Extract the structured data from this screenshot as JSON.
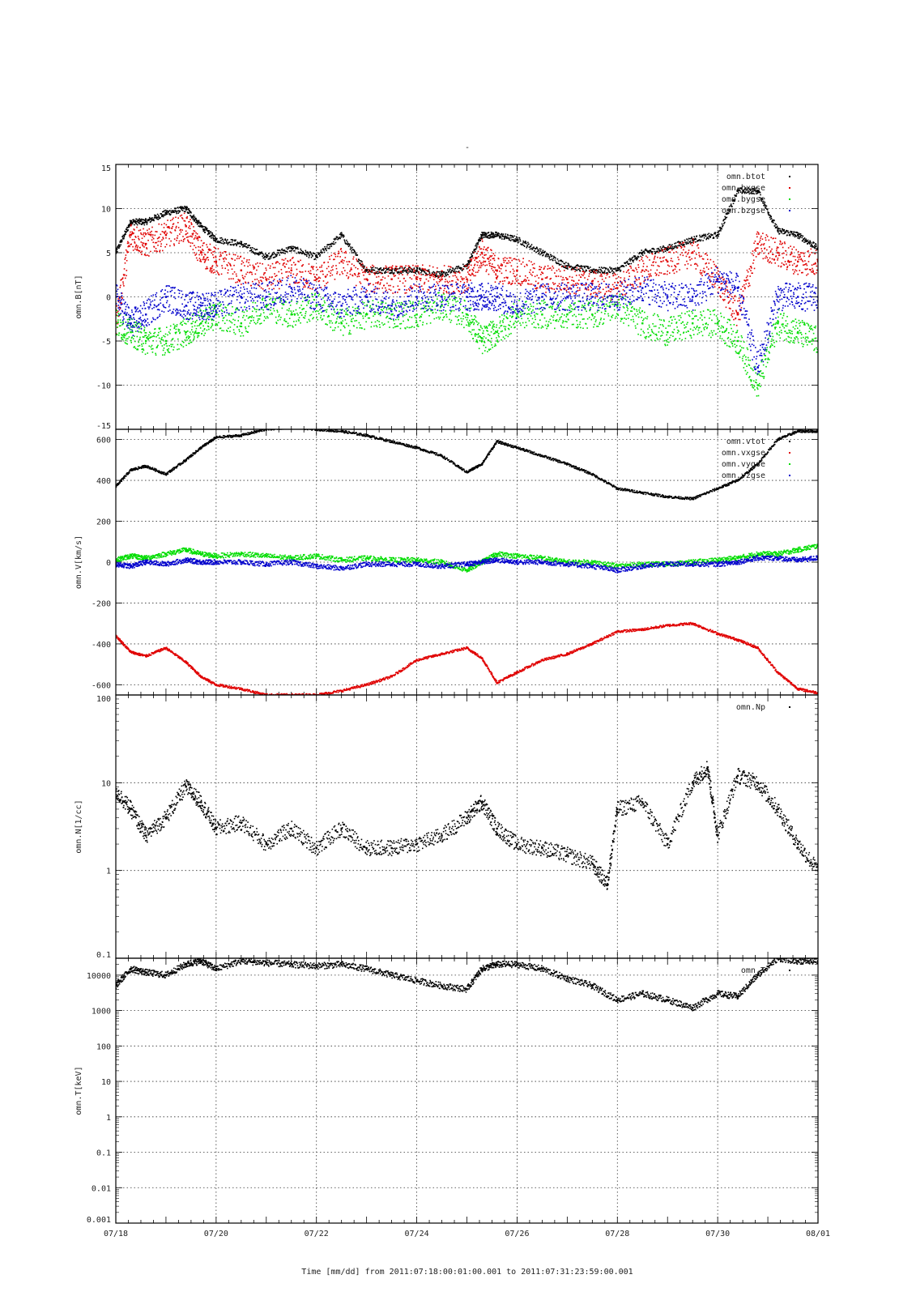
{
  "figure": {
    "title": "-",
    "xlabel": "Time [mm/dd]  from 2011:07:18:00:01:00.001  to  2011:07:31:23:59:00.001",
    "x_ticks": [
      "07/18",
      "07/20",
      "07/22",
      "07/24",
      "07/26",
      "07/28",
      "07/30",
      "08/01"
    ]
  },
  "colors": {
    "black": "#000000",
    "red": "#e00000",
    "green": "#00dd00",
    "blue": "#0000cc"
  },
  "chart_data": [
    {
      "type": "scatter",
      "ylabel": "omn.B[nT]",
      "ylim": [
        -15,
        15
      ],
      "yscale": "linear",
      "y_ticks": [
        -15,
        -10,
        -5,
        0,
        5,
        10,
        15
      ],
      "legend_placement": "top-right",
      "x_range_days": [
        18,
        32
      ],
      "series": [
        {
          "name": "omn.btot",
          "color": "#000000",
          "x": [
            18.0,
            18.3,
            18.6,
            19.0,
            19.4,
            19.7,
            20.0,
            20.5,
            21.0,
            21.5,
            22.0,
            22.5,
            23.0,
            23.5,
            24.0,
            24.5,
            25.0,
            25.3,
            25.6,
            26.0,
            26.5,
            27.0,
            27.5,
            28.0,
            28.5,
            29.0,
            29.5,
            30.0,
            30.4,
            30.8,
            31.2,
            31.6,
            32.0
          ],
          "y": [
            5,
            8.5,
            8.5,
            9.5,
            10,
            8,
            6.5,
            6,
            4.5,
            5.5,
            4.5,
            7,
            3,
            3,
            3,
            2.5,
            3.5,
            7,
            7,
            6.5,
            5,
            3.5,
            3,
            3,
            5,
            5.5,
            6.5,
            7,
            12,
            12,
            7.5,
            7,
            5.5
          ]
        },
        {
          "name": "omn.bxgse",
          "color": "#e00000",
          "x": [
            18.0,
            18.3,
            18.6,
            19.0,
            19.4,
            19.7,
            20.0,
            20.5,
            21.0,
            21.5,
            22.0,
            22.5,
            23.0,
            23.5,
            24.0,
            24.5,
            25.0,
            25.3,
            25.6,
            26.0,
            26.5,
            27.0,
            27.5,
            28.0,
            28.5,
            29.0,
            29.5,
            30.0,
            30.4,
            30.8,
            31.2,
            31.6,
            32.0
          ],
          "y": [
            -3,
            7,
            6,
            7,
            8,
            5,
            4,
            3,
            2,
            3,
            2,
            4,
            2,
            2,
            2,
            2,
            2,
            5,
            3,
            3,
            2,
            2,
            1.5,
            1,
            3,
            4,
            5,
            2,
            -2,
            6,
            5,
            4,
            4
          ]
        },
        {
          "name": "omn.bygse",
          "color": "#00dd00",
          "x": [
            18.0,
            18.3,
            18.6,
            19.0,
            19.4,
            19.7,
            20.0,
            20.5,
            21.0,
            21.5,
            22.0,
            22.5,
            23.0,
            23.5,
            24.0,
            24.5,
            25.0,
            25.3,
            25.6,
            26.0,
            26.5,
            27.0,
            27.5,
            28.0,
            28.5,
            29.0,
            29.5,
            30.0,
            30.4,
            30.8,
            31.2,
            31.6,
            32.0
          ],
          "y": [
            -3,
            -4,
            -5,
            -5,
            -4,
            -3,
            -2,
            -3,
            -1,
            -2,
            -1,
            -3,
            -2,
            -2,
            -2,
            -1,
            -2,
            -5,
            -4,
            -2,
            -2,
            -2,
            -2,
            -1,
            -3,
            -4,
            -3,
            -3,
            -5,
            -10,
            -3,
            -4,
            -5
          ]
        },
        {
          "name": "omn.bzgse",
          "color": "#0000cc",
          "x": [
            18.0,
            18.3,
            18.6,
            19.0,
            19.4,
            19.7,
            20.0,
            20.5,
            21.0,
            21.5,
            22.0,
            22.5,
            23.0,
            23.5,
            24.0,
            24.5,
            25.0,
            25.3,
            25.6,
            26.0,
            26.5,
            27.0,
            27.5,
            28.0,
            28.5,
            29.0,
            29.5,
            30.0,
            30.4,
            30.8,
            31.2,
            31.6,
            32.0
          ],
          "y": [
            0,
            -3,
            -2,
            0,
            -1,
            -1,
            -1,
            0,
            0,
            1,
            0,
            -1,
            0,
            -1,
            0,
            0,
            0,
            0,
            0,
            -1,
            0,
            0,
            0,
            0,
            1,
            0,
            0,
            2,
            1,
            -8,
            0,
            0,
            0
          ]
        }
      ]
    },
    {
      "type": "scatter",
      "ylabel": "omn.V[km/s]",
      "ylim": [
        -650,
        650
      ],
      "yscale": "linear",
      "y_ticks": [
        -600,
        -400,
        -200,
        0,
        200,
        400,
        600
      ],
      "legend_placement": "top-right",
      "x_range_days": [
        18,
        32
      ],
      "series": [
        {
          "name": "omn.vtot",
          "color": "#000000",
          "x": [
            18.0,
            18.3,
            18.6,
            19.0,
            19.4,
            19.7,
            20.0,
            20.5,
            21.0,
            21.5,
            22.0,
            22.5,
            23.0,
            23.5,
            24.0,
            24.5,
            25.0,
            25.3,
            25.6,
            26.0,
            26.5,
            27.0,
            27.5,
            28.0,
            28.5,
            29.0,
            29.5,
            30.0,
            30.4,
            30.8,
            31.2,
            31.6,
            32.0
          ],
          "y": [
            370,
            450,
            470,
            430,
            500,
            560,
            610,
            620,
            650,
            660,
            650,
            640,
            620,
            590,
            560,
            520,
            440,
            480,
            590,
            560,
            520,
            480,
            430,
            360,
            340,
            320,
            310,
            360,
            400,
            480,
            600,
            640,
            640
          ]
        },
        {
          "name": "omn.vxgse",
          "color": "#e00000",
          "x": [
            18.0,
            18.3,
            18.6,
            19.0,
            19.4,
            19.7,
            20.0,
            20.5,
            21.0,
            21.5,
            22.0,
            22.5,
            23.0,
            23.5,
            24.0,
            24.5,
            25.0,
            25.3,
            25.6,
            26.0,
            26.5,
            27.0,
            27.5,
            28.0,
            28.5,
            29.0,
            29.5,
            30.0,
            30.4,
            30.8,
            31.2,
            31.6,
            32.0
          ],
          "y": [
            -360,
            -440,
            -460,
            -420,
            -490,
            -560,
            -600,
            -620,
            -650,
            -650,
            -650,
            -630,
            -600,
            -560,
            -480,
            -450,
            -420,
            -470,
            -590,
            -540,
            -480,
            -450,
            -400,
            -340,
            -330,
            -310,
            -300,
            -350,
            -380,
            -420,
            -540,
            -620,
            -640
          ]
        },
        {
          "name": "omn.vygse",
          "color": "#00dd00",
          "x": [
            18.0,
            18.3,
            18.6,
            19.0,
            19.4,
            19.7,
            20.0,
            20.5,
            21.0,
            21.5,
            22.0,
            22.5,
            23.0,
            23.5,
            24.0,
            24.5,
            25.0,
            25.3,
            25.6,
            26.0,
            26.5,
            27.0,
            27.5,
            28.0,
            28.5,
            29.0,
            29.5,
            30.0,
            30.4,
            30.8,
            31.2,
            31.6,
            32.0
          ],
          "y": [
            10,
            30,
            20,
            40,
            60,
            40,
            30,
            40,
            30,
            20,
            30,
            10,
            20,
            10,
            10,
            0,
            -40,
            0,
            40,
            30,
            20,
            0,
            0,
            -20,
            -10,
            -10,
            0,
            10,
            20,
            40,
            40,
            60,
            80
          ]
        },
        {
          "name": "omn.vzgse",
          "color": "#0000cc",
          "x": [
            18.0,
            18.3,
            18.6,
            19.0,
            19.4,
            19.7,
            20.0,
            20.5,
            21.0,
            21.5,
            22.0,
            22.5,
            23.0,
            23.5,
            24.0,
            24.5,
            25.0,
            25.3,
            25.6,
            26.0,
            26.5,
            27.0,
            27.5,
            28.0,
            28.5,
            29.0,
            29.5,
            30.0,
            30.4,
            30.8,
            31.2,
            31.6,
            32.0
          ],
          "y": [
            -10,
            -20,
            0,
            -10,
            10,
            0,
            0,
            0,
            -10,
            0,
            -20,
            -30,
            -10,
            -10,
            -10,
            -20,
            -10,
            0,
            10,
            0,
            0,
            -10,
            -20,
            -40,
            -20,
            -10,
            -10,
            -10,
            0,
            20,
            20,
            10,
            20
          ]
        }
      ]
    },
    {
      "type": "scatter",
      "ylabel": "omn.N[1/cc]",
      "ylim": [
        0.1,
        100
      ],
      "yscale": "log",
      "y_ticks": [
        0.1,
        1,
        10,
        100
      ],
      "legend_placement": "top-right",
      "x_range_days": [
        18,
        32
      ],
      "series": [
        {
          "name": "omn.Np",
          "color": "#000000",
          "x": [
            18.0,
            18.3,
            18.6,
            19.0,
            19.4,
            19.7,
            20.0,
            20.5,
            21.0,
            21.5,
            22.0,
            22.5,
            23.0,
            23.5,
            24.0,
            24.5,
            25.0,
            25.3,
            25.6,
            26.0,
            26.5,
            27.0,
            27.5,
            27.8,
            28.0,
            28.5,
            29.0,
            29.5,
            29.8,
            30.0,
            30.4,
            30.8,
            31.2,
            31.6,
            32.0
          ],
          "y": [
            8,
            5,
            2.5,
            4,
            9,
            6,
            3,
            3.5,
            2,
            3,
            1.8,
            3,
            1.8,
            1.8,
            2,
            2.5,
            4,
            6,
            3,
            2,
            1.8,
            1.5,
            1.2,
            0.7,
            5,
            6,
            2,
            10,
            15,
            2.5,
            12,
            10,
            5,
            2,
            1
          ]
        }
      ]
    },
    {
      "type": "scatter",
      "ylabel": "omn.T[keV]",
      "ylim": [
        0.001,
        30000
      ],
      "yscale": "log",
      "y_ticks": [
        0.001,
        0.01,
        0.1,
        1,
        10,
        100,
        1000,
        10000
      ],
      "legend_placement": "top-right",
      "x_range_days": [
        18,
        32
      ],
      "series": [
        {
          "name": "omn.T",
          "color": "#000000",
          "x": [
            18.0,
            18.3,
            18.6,
            19.0,
            19.4,
            19.7,
            20.0,
            20.5,
            21.0,
            21.5,
            22.0,
            22.5,
            23.0,
            23.5,
            24.0,
            24.5,
            25.0,
            25.3,
            25.6,
            26.0,
            26.5,
            27.0,
            27.5,
            28.0,
            28.5,
            29.0,
            29.5,
            30.0,
            30.4,
            30.8,
            31.2,
            31.6,
            32.0
          ],
          "y": [
            5000,
            15000,
            12000,
            10000,
            20000,
            25000,
            15000,
            25000,
            22000,
            20000,
            18000,
            20000,
            15000,
            10000,
            7000,
            5000,
            4000,
            15000,
            20000,
            20000,
            15000,
            8000,
            5000,
            2000,
            3000,
            2000,
            1200,
            3000,
            2500,
            10000,
            30000,
            25000,
            25000
          ]
        }
      ]
    }
  ]
}
